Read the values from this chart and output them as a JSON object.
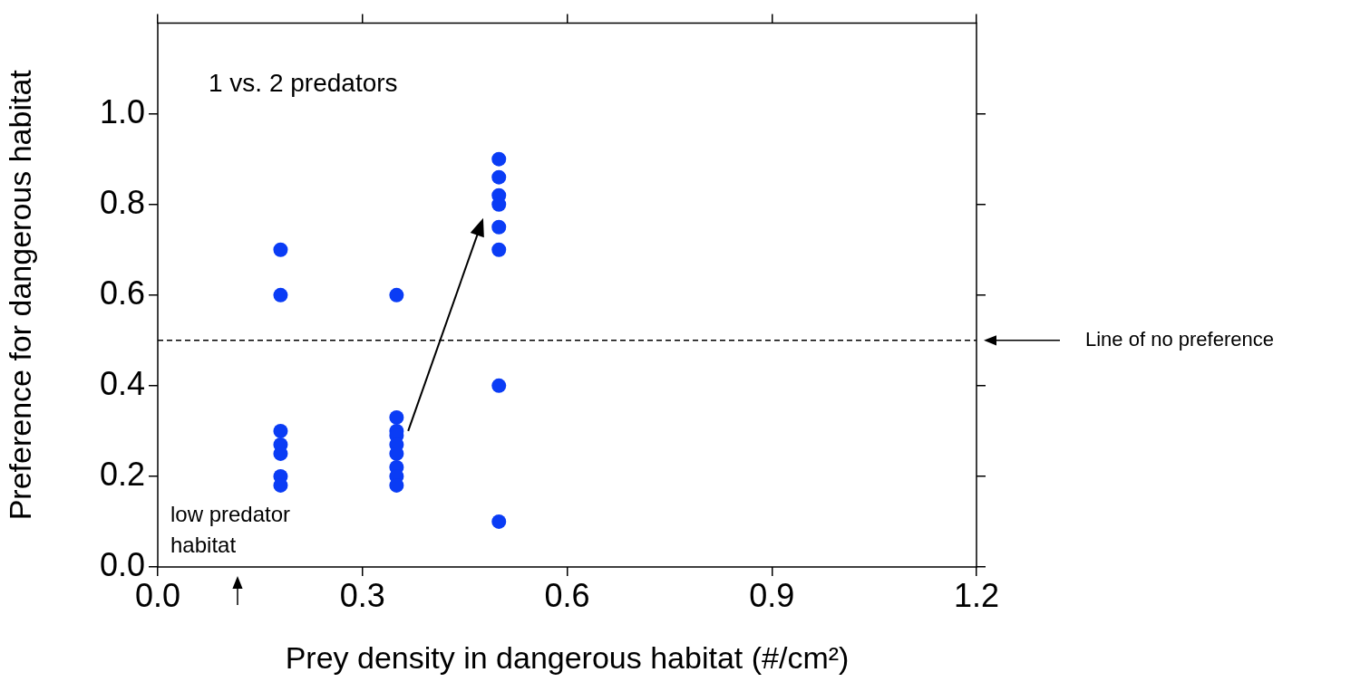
{
  "chart_data": {
    "type": "scatter",
    "xlabel": "Prey density in dangerous habitat (#/cm²)",
    "ylabel": "Preference for dangerous habitat",
    "series": [
      {
        "color": "#0a3cf5",
        "x": [
          0.18,
          0.18,
          0.18,
          0.18,
          0.18,
          0.18,
          0.18,
          0.35,
          0.35,
          0.35,
          0.35,
          0.35,
          0.35,
          0.35,
          0.35,
          0.35,
          0.5,
          0.5,
          0.5,
          0.5,
          0.5,
          0.5,
          0.5,
          0.5
        ],
        "values": [
          0.7,
          0.6,
          0.3,
          0.27,
          0.25,
          0.2,
          0.18,
          0.6,
          0.33,
          0.3,
          0.29,
          0.27,
          0.25,
          0.22,
          0.2,
          0.18,
          0.9,
          0.86,
          0.82,
          0.8,
          0.75,
          0.7,
          0.4,
          0.1
        ]
      }
    ],
    "xlim": [
      0,
      1.2
    ],
    "xticks": [
      {
        "value": 0,
        "label": "0.0"
      },
      0.3,
      0.6,
      0.9,
      1.2
    ],
    "ylim": [
      0,
      1.2
    ],
    "yticks": [
      {
        "value": 0,
        "label": "0.0"
      },
      0.2,
      0.4,
      0.6,
      0.8,
      {
        "value": 1,
        "label": "1.0"
      }
    ],
    "ref_lines": [
      {
        "axis": "y",
        "value": 0.5,
        "label": "Line of no preference",
        "color": "#000000",
        "line_style": "dashed"
      }
    ],
    "annotations": [
      "1 vs. 2 predators",
      "low predator habitat"
    ],
    "grid": false,
    "legend": false,
    "marker": "circle"
  }
}
